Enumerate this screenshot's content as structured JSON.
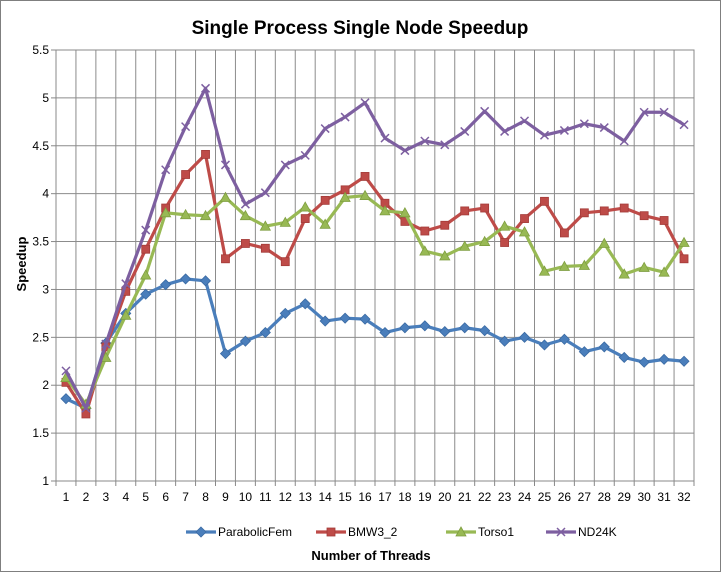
{
  "chart_data": {
    "type": "line",
    "title": "Single Process Single Node Speedup",
    "xlabel": "Number of Threads",
    "ylabel": "Speedup",
    "x": [
      1,
      2,
      3,
      4,
      5,
      6,
      7,
      8,
      9,
      10,
      11,
      12,
      13,
      14,
      15,
      16,
      17,
      18,
      19,
      20,
      21,
      22,
      23,
      24,
      25,
      26,
      27,
      28,
      29,
      30,
      31,
      32
    ],
    "ylim": [
      1,
      5.5
    ],
    "yticks": [
      "1",
      "1.5",
      "2",
      "2.5",
      "3",
      "3.5",
      "4",
      "4.5",
      "5",
      "5.5"
    ],
    "grid": true,
    "legend_position": "bottom",
    "series": [
      {
        "name": "ParabolicFem",
        "color": "#4a7ebb",
        "marker": "diamond",
        "values": [
          1.86,
          1.76,
          2.44,
          2.75,
          2.95,
          3.05,
          3.11,
          3.09,
          2.33,
          2.46,
          2.55,
          2.75,
          2.85,
          2.67,
          2.7,
          2.69,
          2.55,
          2.6,
          2.62,
          2.56,
          2.6,
          2.57,
          2.46,
          2.5,
          2.42,
          2.48,
          2.35,
          2.4,
          2.29,
          2.24,
          2.27,
          2.25
        ]
      },
      {
        "name": "BMW3_2",
        "color": "#be4b48",
        "marker": "square",
        "values": [
          2.03,
          1.7,
          2.4,
          2.98,
          3.42,
          3.85,
          4.2,
          4.41,
          3.32,
          3.48,
          3.43,
          3.29,
          3.74,
          3.93,
          4.04,
          4.18,
          3.9,
          3.71,
          3.61,
          3.67,
          3.82,
          3.85,
          3.49,
          3.74,
          3.92,
          3.59,
          3.8,
          3.82,
          3.85,
          3.77,
          3.72,
          3.32
        ]
      },
      {
        "name": "Torso1",
        "color": "#98b954",
        "marker": "triangle",
        "values": [
          2.08,
          1.8,
          2.29,
          2.73,
          3.15,
          3.8,
          3.78,
          3.77,
          3.96,
          3.77,
          3.66,
          3.7,
          3.86,
          3.68,
          3.96,
          3.98,
          3.82,
          3.8,
          3.4,
          3.35,
          3.45,
          3.5,
          3.66,
          3.6,
          3.19,
          3.24,
          3.25,
          3.48,
          3.16,
          3.23,
          3.18,
          3.49
        ]
      },
      {
        "name": "ND24K",
        "color": "#7d5fa0",
        "marker": "x",
        "values": [
          2.15,
          1.76,
          2.43,
          3.06,
          3.62,
          4.25,
          4.7,
          5.1,
          4.3,
          3.89,
          4.01,
          4.3,
          4.4,
          4.68,
          4.8,
          4.95,
          4.58,
          4.45,
          4.55,
          4.51,
          4.65,
          4.86,
          4.65,
          4.76,
          4.61,
          4.66,
          4.73,
          4.69,
          4.55,
          4.85,
          4.85,
          4.72
        ]
      }
    ]
  }
}
